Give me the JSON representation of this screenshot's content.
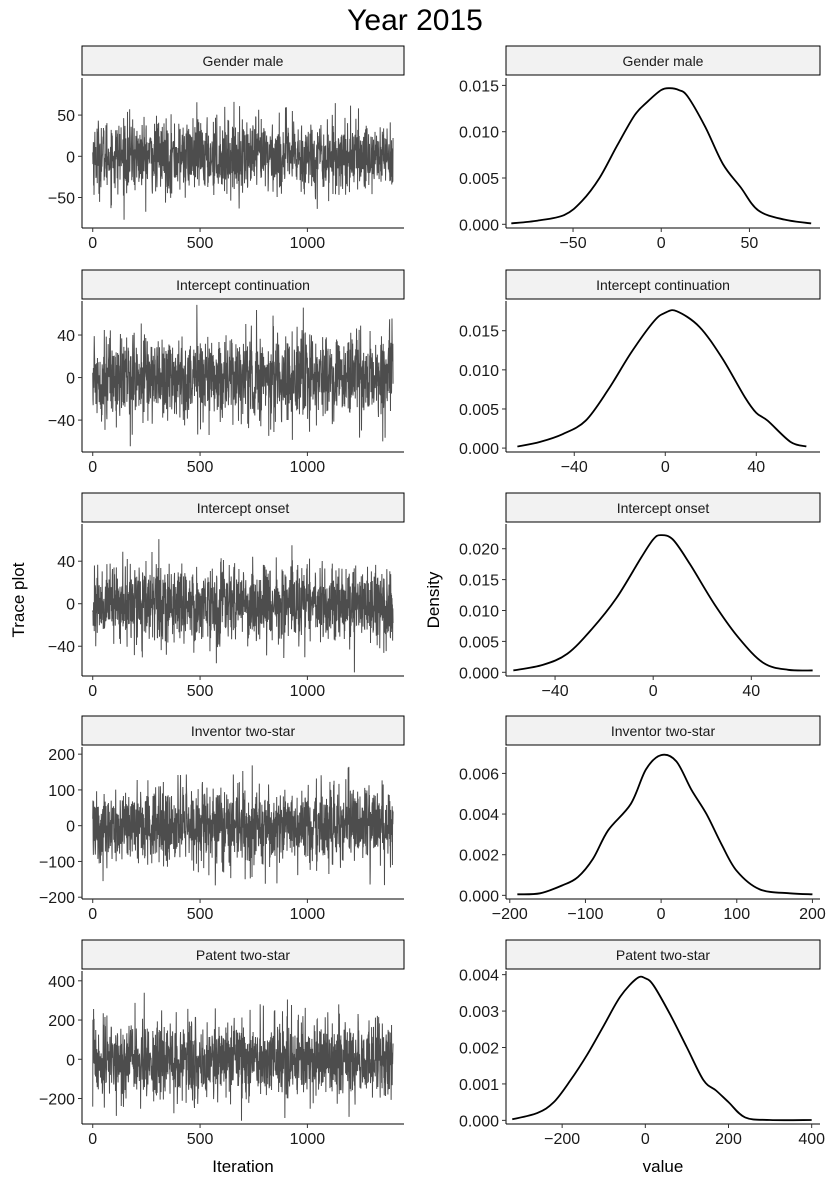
{
  "figure": {
    "title": "Year  2015",
    "left_ylabel": "Trace plot",
    "right_ylabel": "Density",
    "left_xlabel": "Iteration",
    "right_xlabel": "value"
  },
  "chart_data": [
    {
      "type": "line",
      "panel": "trace",
      "title": "Gender male",
      "n_iter": 1400,
      "sd": 22,
      "ylim": [
        -87,
        95
      ],
      "xlim": [
        -50,
        1450
      ],
      "xticks": [
        0,
        500,
        1000
      ],
      "xtick_labels": [
        "0",
        "500",
        "1000"
      ],
      "yticks": [
        -50,
        0,
        50
      ],
      "ytick_labels": [
        "−50",
        "0",
        "50"
      ]
    },
    {
      "type": "line",
      "panel": "density",
      "title": "Gender male",
      "x": [
        -85,
        -70,
        -55,
        -45,
        -35,
        -25,
        -15,
        -8,
        0,
        5,
        10,
        15,
        25,
        35,
        45,
        55,
        70,
        85
      ],
      "y": [
        0.0001,
        0.0004,
        0.001,
        0.0025,
        0.005,
        0.0085,
        0.0118,
        0.0132,
        0.0145,
        0.0147,
        0.0145,
        0.0138,
        0.0105,
        0.0065,
        0.004,
        0.0015,
        0.0005,
        0.0001
      ],
      "xlim": [
        -88,
        90
      ],
      "ylim": [
        -0.0004,
        0.0158
      ],
      "xticks": [
        -50,
        0,
        50
      ],
      "xtick_labels": [
        "−50",
        "0",
        "50"
      ],
      "yticks": [
        0,
        0.005,
        0.01,
        0.015
      ],
      "ytick_labels": [
        "0.000",
        "0.005",
        "0.010",
        "0.015"
      ]
    },
    {
      "type": "line",
      "panel": "trace",
      "title": "Intercept continuation",
      "n_iter": 1400,
      "sd": 20,
      "ylim": [
        -70,
        72
      ],
      "xlim": [
        -50,
        1450
      ],
      "xticks": [
        0,
        500,
        1000
      ],
      "xtick_labels": [
        "0",
        "500",
        "1000"
      ],
      "yticks": [
        -40,
        0,
        40
      ],
      "ytick_labels": [
        "−40",
        "0",
        "40"
      ]
    },
    {
      "type": "line",
      "panel": "density",
      "title": "Intercept continuation",
      "x": [
        -65,
        -55,
        -45,
        -35,
        -25,
        -15,
        -5,
        0,
        5,
        15,
        25,
        35,
        40,
        45,
        55,
        62
      ],
      "y": [
        0.0002,
        0.0008,
        0.0018,
        0.0035,
        0.0075,
        0.0122,
        0.0162,
        0.0173,
        0.0175,
        0.0155,
        0.0115,
        0.0065,
        0.0045,
        0.0035,
        0.0008,
        0.0002
      ],
      "xlim": [
        -70,
        68
      ],
      "ylim": [
        -0.0005,
        0.0188
      ],
      "xticks": [
        -40,
        0,
        40
      ],
      "xtick_labels": [
        "−40",
        "0",
        "40"
      ],
      "yticks": [
        0,
        0.005,
        0.01,
        0.015
      ],
      "ytick_labels": [
        "0.000",
        "0.005",
        "0.010",
        "0.015"
      ]
    },
    {
      "type": "line",
      "panel": "trace",
      "title": "Intercept onset",
      "n_iter": 1400,
      "sd": 18,
      "ylim": [
        -68,
        75
      ],
      "xlim": [
        -50,
        1450
      ],
      "xticks": [
        0,
        500,
        1000
      ],
      "xtick_labels": [
        "0",
        "500",
        "1000"
      ],
      "yticks": [
        -40,
        0,
        40
      ],
      "ytick_labels": [
        "−40",
        "0",
        "40"
      ]
    },
    {
      "type": "line",
      "panel": "density",
      "title": "Intercept onset",
      "x": [
        -57,
        -45,
        -35,
        -25,
        -15,
        -5,
        0,
        3,
        8,
        15,
        25,
        35,
        45,
        55,
        65
      ],
      "y": [
        0.0003,
        0.0012,
        0.003,
        0.007,
        0.012,
        0.0185,
        0.0215,
        0.0222,
        0.0215,
        0.0175,
        0.011,
        0.0055,
        0.0015,
        0.0004,
        0.0003
      ],
      "xlim": [
        -60,
        68
      ],
      "ylim": [
        -0.0006,
        0.024
      ],
      "xticks": [
        -40,
        0,
        40
      ],
      "xtick_labels": [
        "−40",
        "0",
        "40"
      ],
      "yticks": [
        0,
        0.005,
        0.01,
        0.015,
        0.02
      ],
      "ytick_labels": [
        "0.000",
        "0.005",
        "0.010",
        "0.015",
        "0.020"
      ]
    },
    {
      "type": "line",
      "panel": "trace",
      "title": "Inventor two-star",
      "n_iter": 1400,
      "sd": 55,
      "ylim": [
        -205,
        220
      ],
      "xlim": [
        -50,
        1450
      ],
      "xticks": [
        0,
        500,
        1000
      ],
      "xtick_labels": [
        "0",
        "500",
        "1000"
      ],
      "yticks": [
        -200,
        -100,
        0,
        100,
        200
      ],
      "ytick_labels": [
        "−200",
        "−100",
        "0",
        "100",
        "200"
      ]
    },
    {
      "type": "line",
      "panel": "density",
      "title": "Inventor two-star",
      "x": [
        -190,
        -160,
        -130,
        -110,
        -90,
        -70,
        -40,
        -20,
        0,
        20,
        40,
        60,
        80,
        100,
        130,
        170,
        200
      ],
      "y": [
        5e-05,
        0.0001,
        0.0005,
        0.0009,
        0.0018,
        0.0032,
        0.0045,
        0.0062,
        0.0069,
        0.0066,
        0.0052,
        0.004,
        0.0025,
        0.0012,
        0.0003,
        0.0001,
        5e-05
      ],
      "xlim": [
        -205,
        210
      ],
      "ylim": [
        -0.00018,
        0.0073
      ],
      "xticks": [
        -200,
        -100,
        0,
        100,
        200
      ],
      "xtick_labels": [
        "−200",
        "−100",
        "0",
        "100",
        "200"
      ],
      "yticks": [
        0,
        0.002,
        0.004,
        0.006
      ],
      "ytick_labels": [
        "0.000",
        "0.002",
        "0.004",
        "0.006"
      ]
    },
    {
      "type": "line",
      "panel": "trace",
      "title": "Patent two-star",
      "n_iter": 1400,
      "sd": 100,
      "ylim": [
        -330,
        450
      ],
      "xlim": [
        -50,
        1450
      ],
      "xticks": [
        0,
        500,
        1000
      ],
      "xtick_labels": [
        "0",
        "500",
        "1000"
      ],
      "yticks": [
        -200,
        0,
        200,
        400
      ],
      "ytick_labels": [
        "−200",
        "0",
        "200",
        "400"
      ]
    },
    {
      "type": "line",
      "panel": "density",
      "title": "Patent two-star",
      "x": [
        -320,
        -260,
        -220,
        -180,
        -140,
        -100,
        -60,
        -20,
        0,
        20,
        60,
        100,
        140,
        170,
        200,
        240,
        300,
        400
      ],
      "y": [
        3e-05,
        0.0002,
        0.0005,
        0.0011,
        0.0018,
        0.0026,
        0.0034,
        0.0039,
        0.0039,
        0.0037,
        0.0029,
        0.002,
        0.0011,
        0.00082,
        0.0005,
        8e-05,
        1e-05,
        1e-05
      ],
      "xlim": [
        -335,
        420
      ],
      "ylim": [
        -0.0001,
        0.0041
      ],
      "xticks": [
        -200,
        0,
        200,
        400
      ],
      "xtick_labels": [
        "−200",
        "0",
        "200",
        "400"
      ],
      "yticks": [
        0,
        0.001,
        0.002,
        0.003,
        0.004
      ],
      "ytick_labels": [
        "0.000",
        "0.001",
        "0.002",
        "0.003",
        "0.004"
      ]
    }
  ]
}
